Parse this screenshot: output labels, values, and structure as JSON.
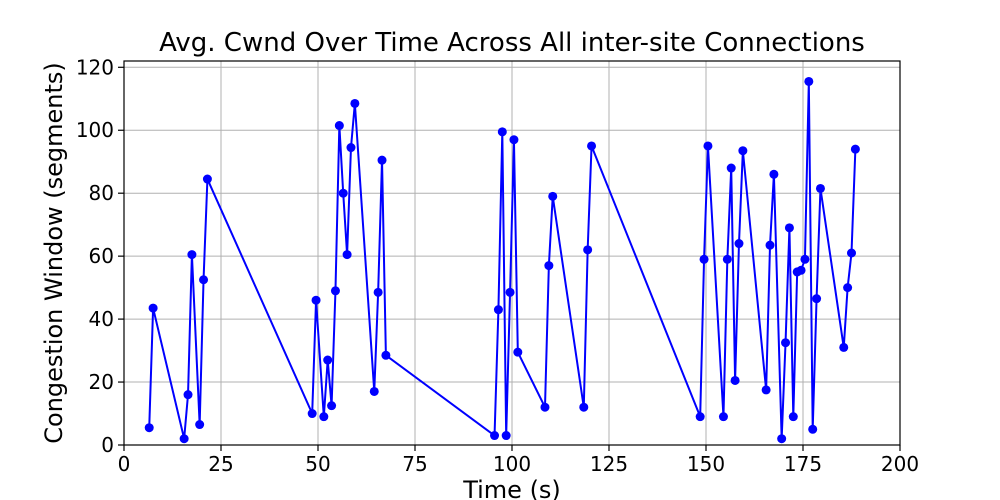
{
  "chart_data": {
    "type": "line",
    "title": "Avg. Cwnd Over Time Across All inter-site Connections",
    "xlabel": "Time (s)",
    "ylabel": "Congestion Window (segments)",
    "xlim": [
      0,
      200
    ],
    "ylim": [
      0,
      122
    ],
    "xticks": [
      0,
      25,
      50,
      75,
      100,
      125,
      150,
      175,
      200
    ],
    "yticks": [
      0,
      20,
      40,
      60,
      80,
      100,
      120
    ],
    "grid": true,
    "color": "#0000ff",
    "marker": "circle",
    "series": [
      {
        "x": [
          6.5,
          7.5,
          15.5,
          16.5,
          17.5,
          19.5,
          20.5,
          21.5,
          48.5,
          49.5,
          51.5,
          52.5,
          53.5,
          54.5,
          55.5,
          56.5,
          57.5,
          58.5,
          59.5,
          64.5,
          65.5,
          66.5,
          67.5,
          95.5,
          96.5,
          97.5,
          98.5,
          99.5,
          100.5,
          101.5,
          108.5,
          109.5,
          110.5,
          118.5,
          119.5,
          120.5,
          148.5,
          149.5,
          150.5,
          154.5,
          155.5,
          156.5,
          157.5,
          158.5,
          159.5,
          165.5,
          166.5,
          167.5,
          169.5,
          170.5,
          171.5,
          172.5,
          173.5,
          174.5,
          175.5,
          176.5,
          177.5,
          178.5,
          179.5,
          185.5,
          186.5,
          187.5,
          188.5
        ],
        "y": [
          5.5,
          43.5,
          2,
          16,
          60.5,
          6.5,
          52.5,
          84.5,
          10,
          46,
          9,
          27,
          12.5,
          49,
          101.5,
          80,
          60.5,
          94.5,
          108.5,
          17,
          48.5,
          90.5,
          28.5,
          3,
          43,
          99.5,
          3,
          48.5,
          97,
          29.5,
          12,
          57,
          79,
          12,
          62,
          95,
          9,
          59,
          95,
          9,
          59,
          88,
          20.5,
          64,
          93.5,
          17.5,
          63.5,
          86,
          2,
          32.5,
          69,
          9,
          55,
          55.5,
          59,
          115.5,
          5,
          46.5,
          81.5,
          31,
          50,
          61,
          94
        ]
      }
    ]
  }
}
